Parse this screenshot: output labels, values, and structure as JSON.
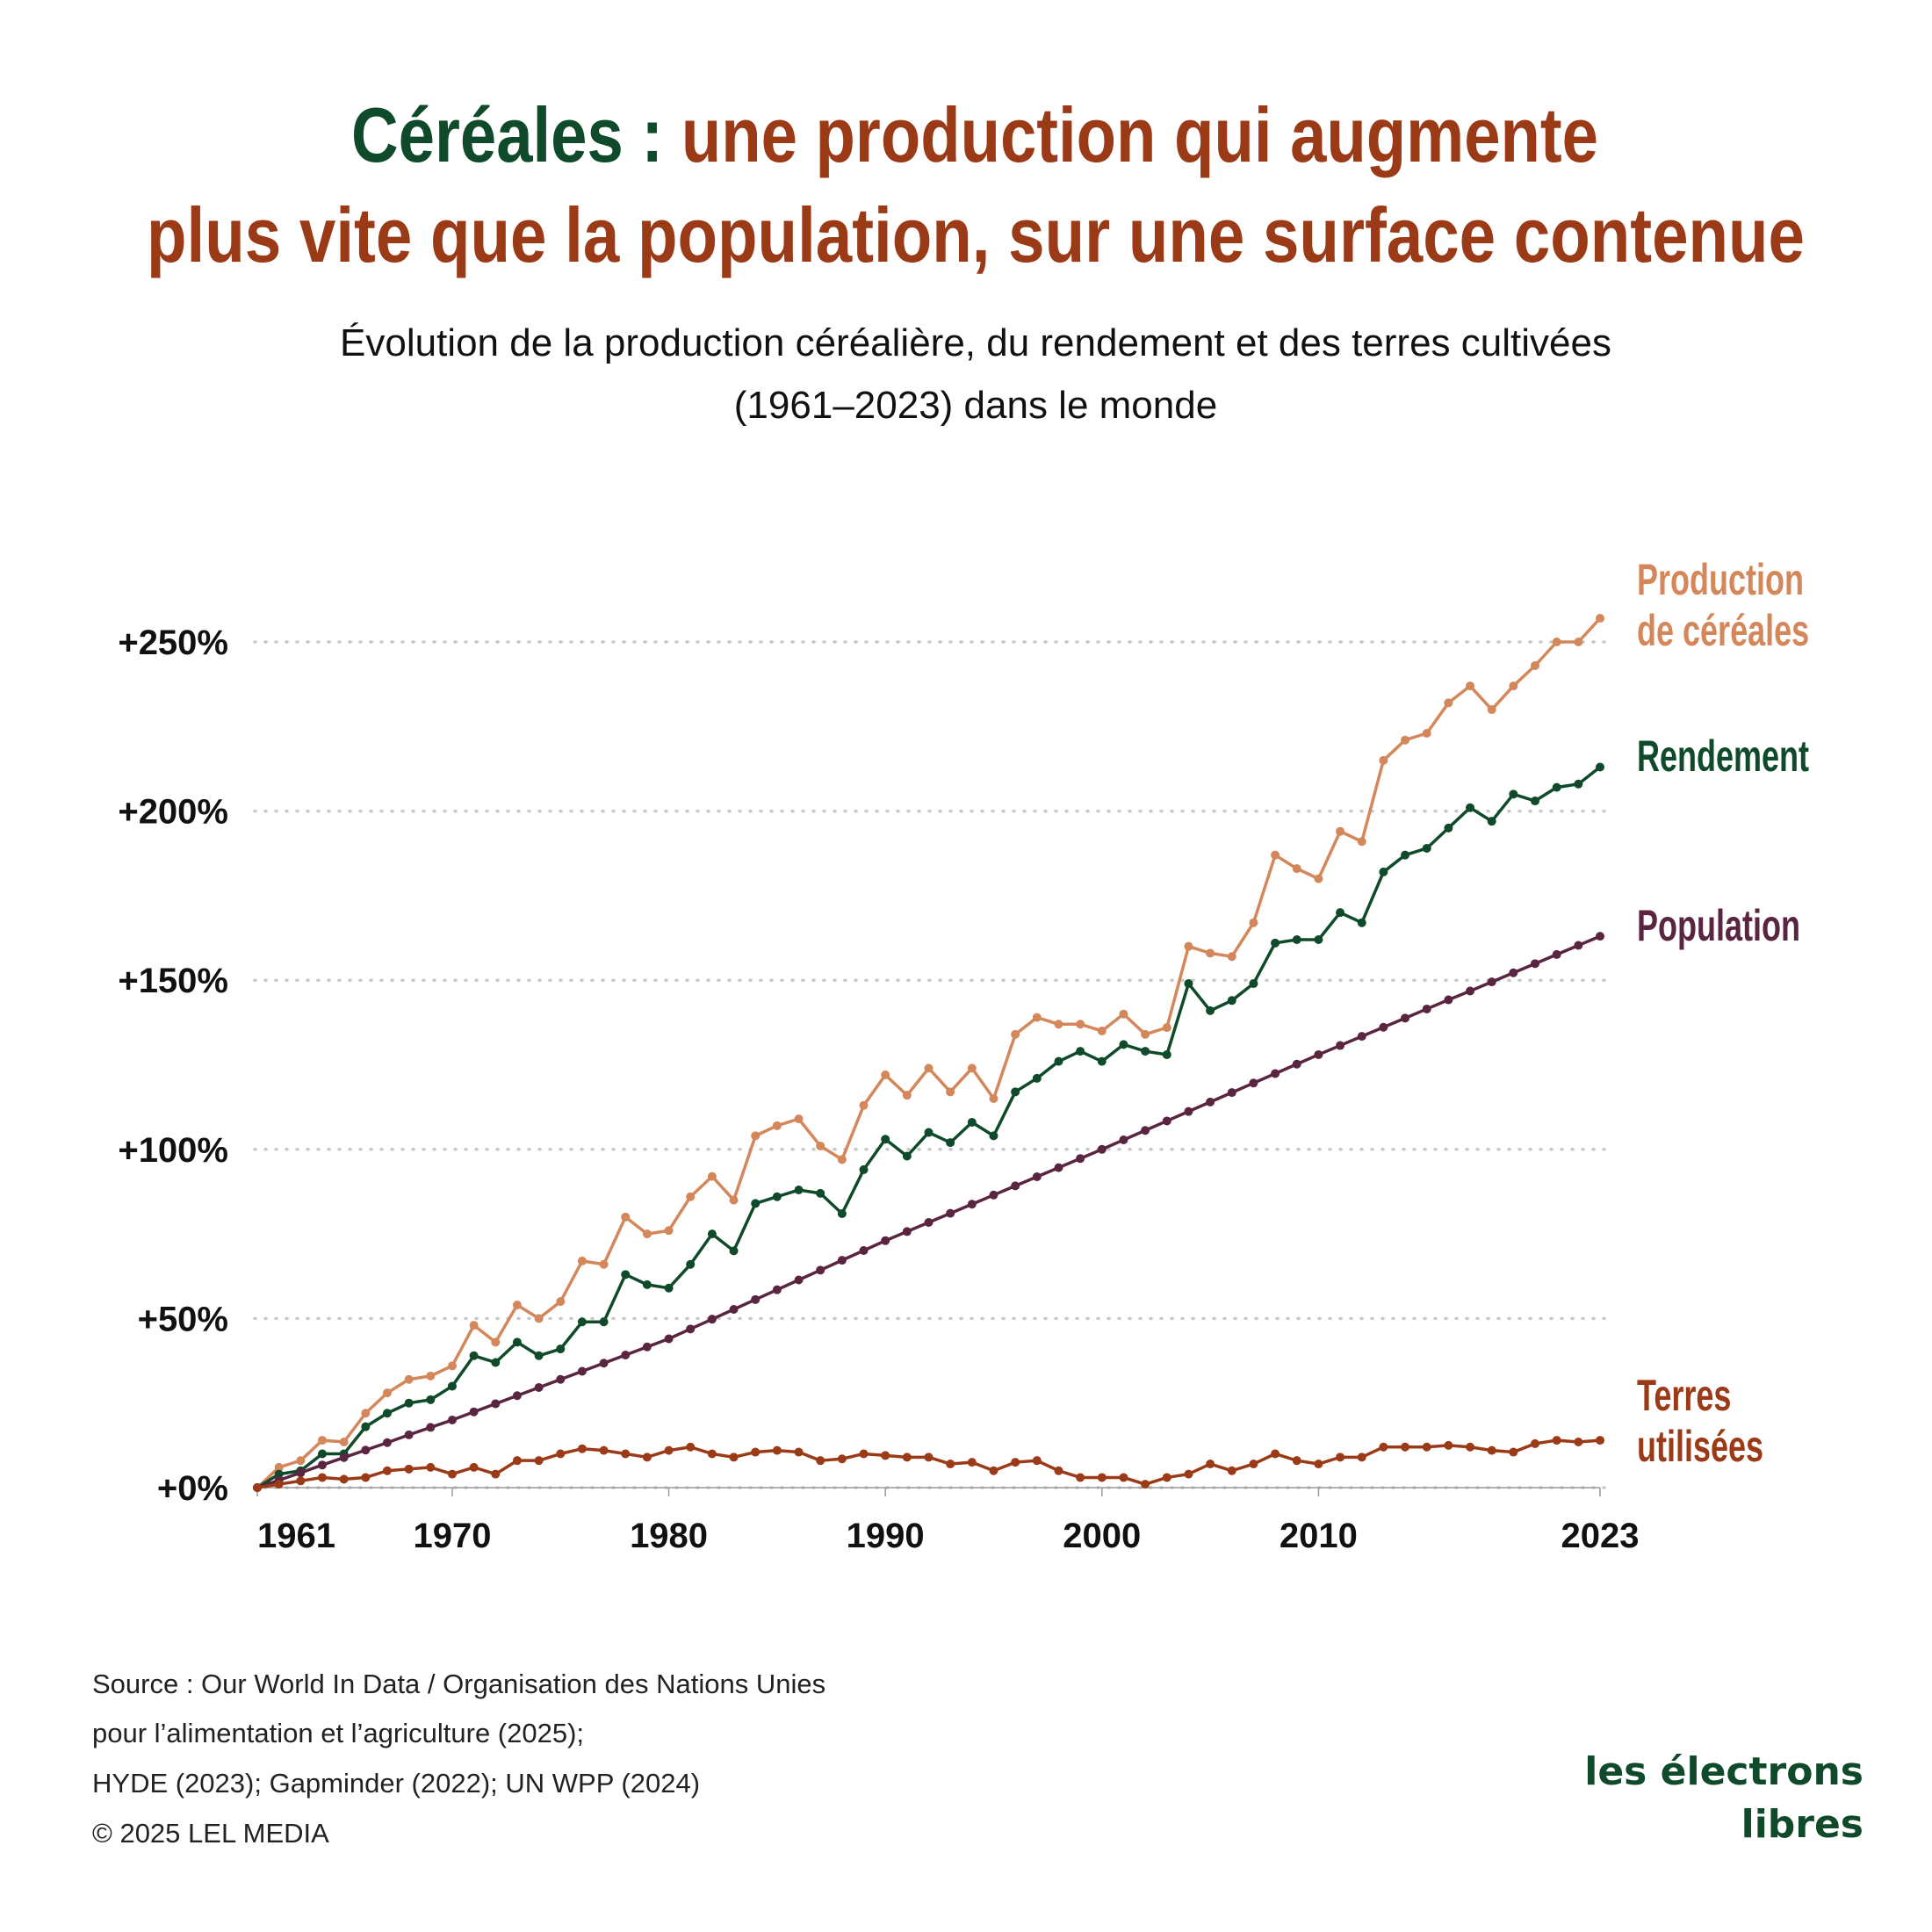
{
  "title": {
    "lead": "Céréales :",
    "line1": "une production qui augmente",
    "line2": "plus vite que la population, sur une surface contenue"
  },
  "subtitle": [
    "Évolution de la production céréalière, du rendement et des terres cultivées",
    "(1961–2023) dans le monde"
  ],
  "source": [
    "Source : Our World In Data / Organisation des Nations Unies",
    "pour l’alimentation et l’agriculture (2025);",
    "HYDE (2023); Gapminder (2022); UN WPP (2024)",
    "© 2025 LEL MEDIA"
  ],
  "logo": [
    "les électrons",
    "libres"
  ],
  "chart_data": {
    "type": "line",
    "x": [
      1961,
      1962,
      1963,
      1964,
      1965,
      1966,
      1967,
      1968,
      1969,
      1970,
      1971,
      1972,
      1973,
      1974,
      1975,
      1976,
      1977,
      1978,
      1979,
      1980,
      1981,
      1982,
      1983,
      1984,
      1985,
      1986,
      1987,
      1988,
      1989,
      1990,
      1991,
      1992,
      1993,
      1994,
      1995,
      1996,
      1997,
      1998,
      1999,
      2000,
      2001,
      2002,
      2003,
      2004,
      2005,
      2006,
      2007,
      2008,
      2009,
      2010,
      2011,
      2012,
      2013,
      2014,
      2015,
      2016,
      2017,
      2018,
      2019,
      2020,
      2021,
      2022,
      2023
    ],
    "xlim": [
      1961,
      2023
    ],
    "xticks": [
      1961,
      1970,
      1980,
      1990,
      2000,
      2010,
      2023
    ],
    "ylim": [
      0,
      250
    ],
    "yticks": [
      {
        "value": 0,
        "label": "+0%"
      },
      {
        "value": 50,
        "label": "+50%"
      },
      {
        "value": 100,
        "label": "+100%"
      },
      {
        "value": 150,
        "label": "+150%"
      },
      {
        "value": 200,
        "label": "+200%"
      },
      {
        "value": 250,
        "label": "+250%"
      }
    ],
    "grid": true,
    "series": [
      {
        "name": "Production de céréales",
        "color": "#d4875a",
        "values": [
          0,
          6,
          8,
          14,
          13.5,
          22,
          28,
          32,
          33,
          36,
          48,
          43,
          54,
          50,
          55,
          67,
          66,
          80,
          75,
          76,
          86,
          92,
          85,
          104,
          107,
          109,
          101,
          97,
          113,
          122,
          116,
          124,
          117,
          124,
          115,
          134,
          139,
          137,
          137,
          135,
          140,
          134,
          136,
          160,
          158,
          157,
          167,
          187,
          183,
          180,
          194,
          191,
          215,
          221,
          223,
          232,
          237,
          230,
          237,
          243,
          250,
          250,
          257
        ]
      },
      {
        "name": "Rendement",
        "color": "#0f4a2a",
        "values": [
          0,
          4,
          5,
          10,
          10,
          18,
          22,
          25,
          26,
          30,
          39,
          37,
          43,
          39,
          41,
          49,
          49,
          63,
          60,
          59,
          66,
          75,
          70,
          84,
          86,
          88,
          87,
          81,
          94,
          103,
          98,
          105,
          102,
          108,
          104,
          117,
          121,
          126,
          129,
          126,
          131,
          129,
          128,
          149,
          141,
          144,
          149,
          161,
          162,
          162,
          170,
          167,
          182,
          187,
          189,
          195,
          201,
          197,
          205,
          203,
          207,
          208,
          213
        ]
      },
      {
        "name": "Population",
        "color": "#5a2540",
        "values": [
          0,
          2.2,
          4.4,
          6.7,
          8.9,
          11.1,
          13.3,
          15.6,
          17.8,
          20,
          22.4,
          24.8,
          27.2,
          29.6,
          32,
          34.4,
          36.8,
          39.2,
          41.6,
          44,
          46.9,
          49.8,
          52.7,
          55.6,
          58.5,
          61.4,
          64.3,
          67.2,
          70.1,
          73,
          75.7,
          78.4,
          81.1,
          83.8,
          86.5,
          89.2,
          91.9,
          94.6,
          97.3,
          100,
          102.8,
          105.6,
          108.4,
          111.2,
          114,
          116.8,
          119.6,
          122.4,
          125.2,
          128,
          130.7,
          133.4,
          136.1,
          138.8,
          141.5,
          144.2,
          146.8,
          149.5,
          152.2,
          154.9,
          157.6,
          160.3,
          163
        ]
      },
      {
        "name": "Terres utilisées",
        "color": "#9b3a16",
        "values": [
          0,
          1,
          2,
          3,
          2.5,
          3,
          5,
          5.5,
          6,
          4,
          6,
          4,
          8,
          8,
          10,
          11.5,
          11,
          10,
          9,
          11,
          12,
          10,
          9,
          10.5,
          11,
          10.5,
          8,
          8.5,
          10,
          9.5,
          9,
          9,
          7,
          7.5,
          5,
          7.5,
          8,
          5,
          3,
          3,
          3,
          1,
          3,
          4,
          7,
          5,
          7,
          10,
          8,
          7,
          9,
          9,
          12,
          12,
          12,
          12.5,
          12,
          11,
          10.5,
          13,
          14,
          13.5,
          14
        ]
      }
    ]
  }
}
